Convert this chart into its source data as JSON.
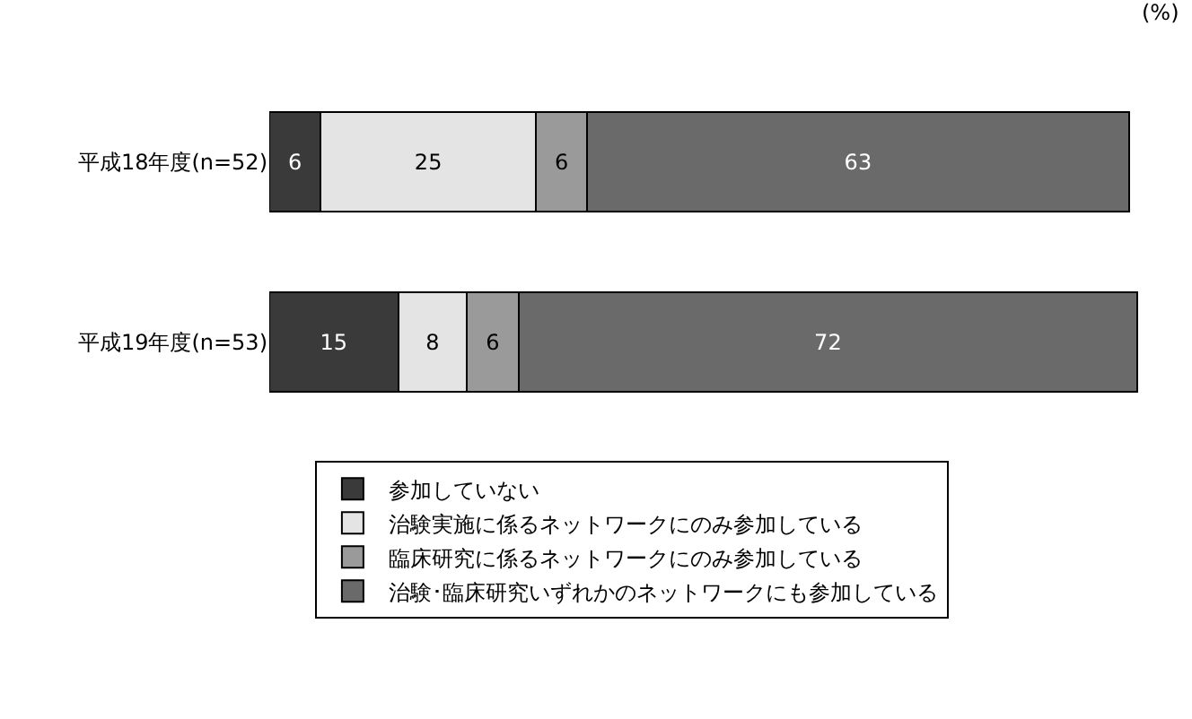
{
  "chart_data": {
    "type": "bar",
    "orientation": "horizontal",
    "stacked": true,
    "data_labels": true,
    "legend": "bottom",
    "tick_labels": "y",
    "categories": [
      "平成18年度(n=52)",
      "平成19年度(n=53)"
    ],
    "series": [
      {
        "name": "参加していない",
        "color": "#3a3a3a",
        "values": [
          6,
          15
        ]
      },
      {
        "name": "治験実施に係るネットワークにのみ参加している",
        "color": "#e4e4e4",
        "values": [
          25,
          8
        ]
      },
      {
        "name": "臨床研究に係るネットワークにのみ参加している",
        "color": "#9a9a9a",
        "values": [
          6,
          6
        ]
      },
      {
        "name": "治験･臨床研究いずれかのネットワークにも参加している",
        "color": "#6a6a6a",
        "values": [
          63,
          72
        ]
      }
    ],
    "annotations": [
      "(%)"
    ]
  }
}
